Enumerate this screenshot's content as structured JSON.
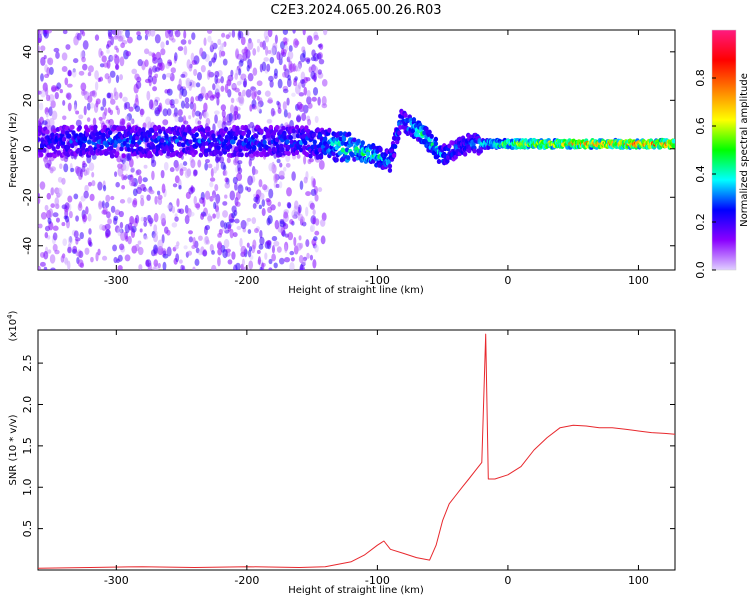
{
  "title": "C2E3.2024.065.00.26.R03",
  "chart_data": [
    {
      "type": "heatmap",
      "xlabel": "Height of straight line (km)",
      "ylabel": "Frequency (Hz)",
      "xlim": [
        -360,
        128
      ],
      "ylim": [
        -50,
        49
      ],
      "x_ticks": [
        -300,
        -200,
        -100,
        0,
        100
      ],
      "x_tick_labels": [
        "-300",
        "-200",
        "-100",
        "0",
        "100"
      ],
      "y_ticks": [
        -40,
        -20,
        0,
        20,
        40
      ],
      "y_tick_labels": [
        "-40",
        "-20",
        "0",
        "20",
        "40"
      ],
      "grid": false,
      "colorbar": {
        "label": "Normalized spectral amplitude",
        "range": [
          0,
          1
        ],
        "ticks": [
          0.0,
          0.2,
          0.4,
          0.6,
          0.8
        ],
        "tick_labels": [
          "0.0",
          "0.2",
          "0.4",
          "0.6",
          "0.8"
        ],
        "colormap": [
          "#e0d0ff",
          "#8a00ff",
          "#0000ff",
          "#00ffff",
          "#00ff00",
          "#ffff00",
          "#ff8000",
          "#ff0000",
          "#ff1a80"
        ]
      },
      "ridge": {
        "x": [
          -360,
          -320,
          -280,
          -240,
          -200,
          -160,
          -140,
          -120,
          -100,
          -90,
          -82,
          -70,
          -60,
          -50,
          -40,
          -30,
          -20,
          0,
          40,
          80,
          128
        ],
        "y": [
          3,
          3,
          3,
          3,
          3,
          3,
          2,
          0,
          -3,
          -5,
          12,
          8,
          3,
          -3,
          0,
          2,
          2,
          2,
          2,
          2,
          2
        ],
        "amplitude": [
          0.25,
          0.3,
          0.3,
          0.3,
          0.3,
          0.3,
          0.35,
          0.5,
          0.45,
          0.35,
          0.3,
          0.45,
          0.45,
          0.35,
          0.3,
          0.3,
          0.4,
          0.6,
          0.75,
          0.8,
          0.85
        ]
      }
    },
    {
      "type": "line",
      "xlabel": "Height of straight line (km)",
      "ylabel": "SNR (10 * v/v)",
      "y_multiplier_label": "(x10",
      "y_multiplier_exp": "4",
      "xlim": [
        -360,
        128
      ],
      "ylim": [
        0,
        2.9
      ],
      "x_ticks": [
        -300,
        -200,
        -100,
        0,
        100
      ],
      "x_tick_labels": [
        "-300",
        "-200",
        "-100",
        "0",
        "100"
      ],
      "y_ticks": [
        0.5,
        1.0,
        1.5,
        2.0,
        2.5
      ],
      "y_tick_labels": [
        "0.5",
        "1.0",
        "1.5",
        "2.0",
        "2.5"
      ],
      "grid": false,
      "series": [
        {
          "color": "#e8282d",
          "x": [
            -360,
            -320,
            -280,
            -240,
            -200,
            -160,
            -140,
            -120,
            -110,
            -100,
            -95,
            -90,
            -80,
            -70,
            -60,
            -55,
            -50,
            -45,
            -40,
            -35,
            -30,
            -25,
            -20,
            -17,
            -15,
            -10,
            0,
            10,
            20,
            30,
            40,
            50,
            60,
            70,
            80,
            90,
            100,
            110,
            120,
            128
          ],
          "y": [
            0.02,
            0.03,
            0.04,
            0.03,
            0.04,
            0.03,
            0.04,
            0.1,
            0.18,
            0.3,
            0.35,
            0.25,
            0.2,
            0.15,
            0.12,
            0.3,
            0.6,
            0.8,
            0.9,
            1.0,
            1.1,
            1.2,
            1.3,
            2.85,
            1.1,
            1.1,
            1.15,
            1.25,
            1.45,
            1.6,
            1.72,
            1.75,
            1.74,
            1.72,
            1.72,
            1.7,
            1.68,
            1.66,
            1.65,
            1.64
          ]
        }
      ]
    }
  ]
}
